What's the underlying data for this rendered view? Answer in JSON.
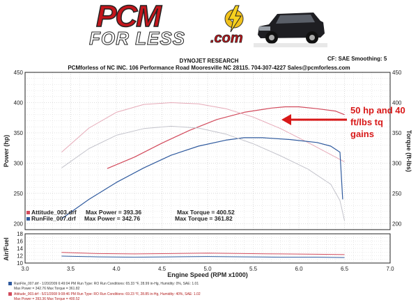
{
  "header": {
    "logo_main": "PCM",
    "logo_sub": "FOR LESS",
    "logo_tld": ".com",
    "title": "DYNOJET RESEARCH",
    "address": "PCMforless of NC INC. 106 Performance Road Mooresville NC 28115. 704-307-4227 Sales@pcmforless.com",
    "cf": "CF: SAE  Smoothing: 5"
  },
  "annotation": {
    "lines": [
      "50 hp and 40",
      "ft/lbs tq",
      "gains"
    ]
  },
  "runs": [
    {
      "file": "Attitude_003.drf",
      "max_power_label": "Max Power = 393.36",
      "max_torque_label": "Max Torque = 400.52",
      "color": "#d24a5c"
    },
    {
      "file": "RunFile_007.drf",
      "max_power_label": "Max Power = 342.76",
      "max_torque_label": "Max Torque = 361.82",
      "color": "#2f5a9e"
    }
  ],
  "footer": {
    "line1": "RunFile_007.drf - 1/20/2009 6:49:04 PM  Run Type: RO  Run Conditions: 65.33 °F, 28.99 in-Hg,  Humidity:  0%, SAE: 1.01",
    "line2": "Max Power = 342.76  Max Torque = 361.82",
    "line3": "Attitude_003.drf - 5/21/2008 9:08:46 PM  Run Type: RO  Run Conditions: 69.23 °F, 28.85 in-Hg,  Humidity:  40%, SAE: 1.02",
    "line4": "Max Power = 393.36  Max Torque = 400.52"
  },
  "colors": {
    "attitude": "#d24a5c",
    "stock": "#2f5a9e",
    "torque_attitude": "#e6aab8",
    "torque_stock": "#c4c4cc",
    "grid": "#c9c9c9"
  },
  "chart_data": [
    {
      "type": "line",
      "xlabel": "Engine Speed (RPM x1000)",
      "ylabel": "Power (hp)",
      "y2label": "Torque (ft-lbs)",
      "xlim": [
        3.0,
        7.0
      ],
      "ylim": [
        190,
        450
      ],
      "xticks": [
        3.0,
        3.5,
        4.0,
        4.5,
        5.0,
        5.5,
        6.0,
        6.5,
        7.0
      ],
      "yticks": [
        200,
        250,
        300,
        350,
        400,
        450
      ],
      "grid": true,
      "series": [
        {
          "name": "Attitude_003.drf",
          "measure": "power",
          "color": "#d24a5c",
          "x": [
            3.9,
            4.2,
            4.5,
            4.8,
            5.1,
            5.4,
            5.7,
            5.85,
            6.0,
            6.2,
            6.4,
            6.5
          ],
          "y": [
            291,
            310,
            333,
            354,
            372,
            384,
            391,
            393,
            393,
            390,
            386,
            380
          ]
        },
        {
          "name": "Attitude_003.drf",
          "measure": "torque",
          "color": "#e6aab8",
          "x": [
            3.4,
            3.7,
            4.0,
            4.3,
            4.6,
            4.9,
            5.2,
            5.5,
            5.8,
            6.1,
            6.4,
            6.5
          ],
          "y": [
            318,
            358,
            384,
            397,
            400,
            398,
            390,
            376,
            357,
            334,
            310,
            302
          ]
        },
        {
          "name": "RunFile_007.drf",
          "measure": "power",
          "color": "#2f5a9e",
          "x": [
            3.4,
            3.7,
            4.0,
            4.3,
            4.6,
            4.9,
            5.2,
            5.4,
            5.6,
            5.9,
            6.2,
            6.35,
            6.45,
            6.48
          ],
          "y": [
            208,
            240,
            268,
            292,
            313,
            328,
            338,
            342,
            342,
            339,
            334,
            328,
            318,
            240
          ]
        },
        {
          "name": "RunFile_007.drf",
          "measure": "torque",
          "color": "#c4c4cc",
          "x": [
            3.4,
            3.7,
            4.0,
            4.3,
            4.6,
            4.9,
            5.2,
            5.5,
            5.8,
            6.1,
            6.35,
            6.45,
            6.5
          ],
          "y": [
            292,
            324,
            346,
            357,
            361,
            358,
            348,
            332,
            312,
            290,
            265,
            238,
            205
          ]
        }
      ]
    },
    {
      "type": "line",
      "ylabel": "Air/Fuel",
      "xlim": [
        3.0,
        7.0
      ],
      "ylim": [
        10,
        18
      ],
      "yticks": [
        10,
        12,
        14,
        16,
        18
      ],
      "grid": true,
      "series": [
        {
          "name": "Attitude_003.drf",
          "color": "#d24a5c",
          "x": [
            3.4,
            3.8,
            4.2,
            4.6,
            5.0,
            5.4,
            5.8,
            6.2,
            6.5
          ],
          "y": [
            12.9,
            12.6,
            12.5,
            12.6,
            12.7,
            12.6,
            12.5,
            12.4,
            12.3
          ]
        },
        {
          "name": "RunFile_007.drf",
          "color": "#2f5a9e",
          "x": [
            3.4,
            3.8,
            4.2,
            4.6,
            5.0,
            5.4,
            5.8,
            6.2,
            6.5
          ],
          "y": [
            11.9,
            11.7,
            11.6,
            11.7,
            11.8,
            11.7,
            11.6,
            11.6,
            11.5
          ]
        }
      ]
    }
  ]
}
